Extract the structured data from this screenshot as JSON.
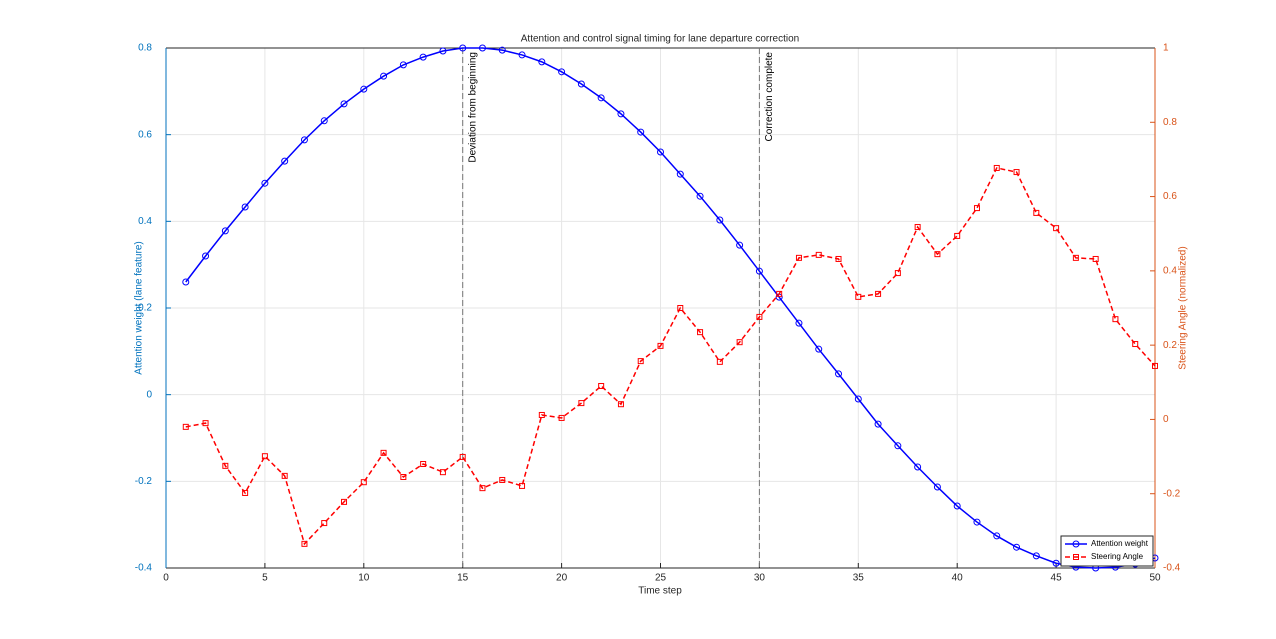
{
  "chart_data": {
    "type": "line",
    "title": "Attention and control signal timing for lane departure correction",
    "x_label": "Time step",
    "y_label": "Attention weight (lane feature)",
    "y2_label": "Steering Angle (normalized)",
    "x": [
      1,
      2,
      3,
      4,
      5,
      6,
      7,
      8,
      9,
      10,
      11,
      12,
      13,
      14,
      15,
      16,
      17,
      18,
      19,
      20,
      21,
      22,
      23,
      24,
      25,
      26,
      27,
      28,
      29,
      30,
      31,
      32,
      33,
      34,
      35,
      36,
      37,
      38,
      39,
      40,
      41,
      42,
      43,
      44,
      45,
      46,
      47,
      48,
      49,
      50
    ],
    "series": [
      {
        "name": "Attention weight",
        "color": "#0000ff",
        "marker": "circle",
        "dash": false,
        "values": [
          0.26,
          0.32,
          0.378,
          0.433,
          0.488,
          0.539,
          0.588,
          0.632,
          0.671,
          0.705,
          0.735,
          0.761,
          0.779,
          0.793,
          0.8,
          0.8,
          0.795,
          0.784,
          0.768,
          0.745,
          0.717,
          0.685,
          0.648,
          0.606,
          0.56,
          0.509,
          0.458,
          0.403,
          0.345,
          0.285,
          0.225,
          0.165,
          0.105,
          0.048,
          -0.01,
          -0.068,
          -0.118,
          -0.167,
          -0.213,
          -0.257,
          -0.294,
          -0.326,
          -0.352,
          -0.372,
          -0.389,
          -0.398,
          -0.4,
          -0.398,
          -0.391,
          -0.377
        ]
      },
      {
        "name": "Steering Angle",
        "color": "#ff0000",
        "marker": "square",
        "dash": true,
        "axis": "y2",
        "values": [
          -0.02,
          -0.01,
          -0.125,
          -0.198,
          -0.099,
          -0.152,
          -0.335,
          -0.279,
          -0.222,
          -0.169,
          -0.09,
          -0.155,
          -0.12,
          -0.142,
          -0.101,
          -0.185,
          -0.163,
          -0.179,
          0.012,
          0.004,
          0.044,
          0.09,
          0.041,
          0.157,
          0.198,
          0.3,
          0.235,
          0.155,
          0.208,
          0.276,
          0.338,
          0.435,
          0.443,
          0.432,
          0.33,
          0.338,
          0.394,
          0.518,
          0.445,
          0.494,
          0.569,
          0.677,
          0.666,
          0.556,
          0.515,
          0.435,
          0.432,
          0.27,
          0.203,
          0.144
        ]
      }
    ],
    "annotations": [
      {
        "x": 15,
        "label": "Deviation from beginning"
      },
      {
        "x": 30,
        "label": "Correction complete"
      }
    ],
    "xlim": [
      0,
      50
    ],
    "xticks": [
      0,
      5,
      10,
      15,
      20,
      25,
      30,
      35,
      40,
      45,
      50
    ],
    "ylim": [
      -0.4,
      0.8
    ],
    "yticks": [
      -0.4,
      -0.2,
      0,
      0.2,
      0.4,
      0.6,
      0.8
    ],
    "y2lim": [
      -0.4,
      1
    ],
    "y2ticks": [
      -0.4,
      -0.2,
      0,
      0.2,
      0.4,
      0.6,
      0.8,
      1
    ],
    "y_color": "#0072bd",
    "y2_color": "#d95319",
    "grid": true,
    "legend": "lower right"
  }
}
